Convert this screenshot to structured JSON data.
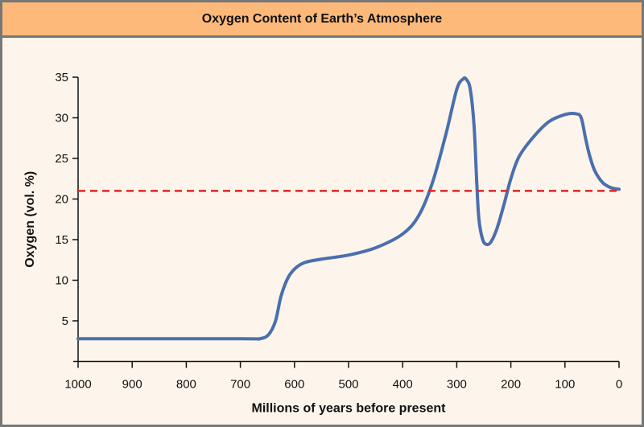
{
  "chart_data": {
    "type": "line",
    "title": "Oxygen Content of Earth’s Atmosphere",
    "xlabel": "Millions of years before present",
    "ylabel": "Oxygen (vol. %)",
    "xlim": [
      1000,
      0
    ],
    "ylim": [
      0,
      35
    ],
    "x_ticks": [
      1000,
      900,
      800,
      700,
      600,
      500,
      400,
      300,
      200,
      100,
      0
    ],
    "y_ticks": [
      5,
      10,
      15,
      20,
      25,
      30,
      35
    ],
    "grid": false,
    "series": [
      {
        "color": "#4a6fae",
        "x": [
          1000,
          700,
          665,
          648,
          635,
          625,
          612,
          598,
          580,
          550,
          500,
          450,
          400,
          370,
          345,
          320,
          300,
          288,
          282,
          275,
          268,
          263,
          259,
          252,
          244,
          236,
          225,
          212,
          200,
          185,
          160,
          130,
          100,
          80,
          70,
          62,
          55,
          45,
          30,
          15,
          0
        ],
        "y": [
          2.8,
          2.8,
          2.8,
          3.3,
          5,
          8,
          10.3,
          11.5,
          12.2,
          12.6,
          13.1,
          14,
          15.7,
          18,
          22,
          28,
          33.5,
          34.8,
          34.7,
          33.5,
          29,
          22,
          17.5,
          15,
          14.4,
          14.8,
          16.5,
          19.5,
          22.5,
          25.2,
          27.5,
          29.5,
          30.4,
          30.5,
          30,
          27.5,
          25.5,
          23.5,
          22,
          21.4,
          21.2
        ]
      }
    ],
    "reference_line": {
      "y": 21,
      "color": "#e02424",
      "style": "dashed"
    }
  }
}
